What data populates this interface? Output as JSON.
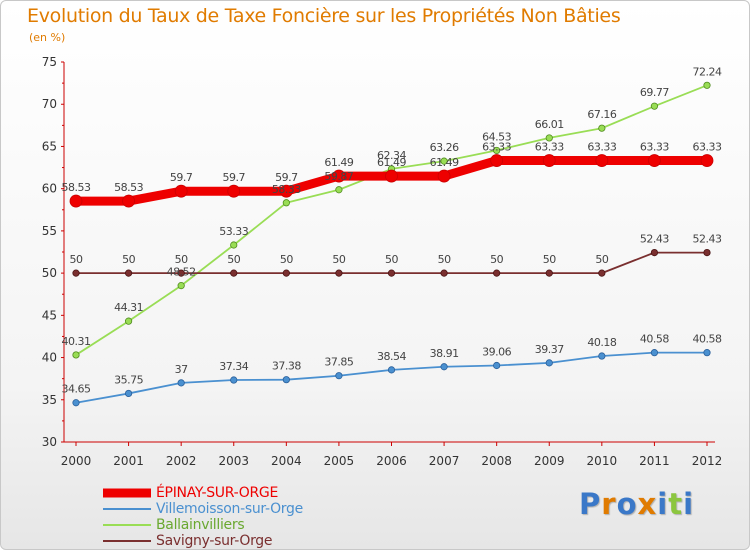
{
  "header": {
    "title": "Evolution du Taux de Taxe Foncière sur les Propriétés Non Bâties",
    "unit": "(en %)"
  },
  "colors": {
    "title": "#e07b00",
    "epinay": "#ee0000",
    "villemoisson": "#4a90d0",
    "ballainvilliers": "#99dd55",
    "savigny": "#7a2f2f",
    "axis_text": "#333333",
    "label_text": "#444444"
  },
  "chart_data": {
    "type": "line",
    "title": "Evolution du Taux de Taxe Foncière sur les Propriétés Non Bâties",
    "ylabel": "(en %)",
    "xlabel": "",
    "ylim": [
      30,
      75
    ],
    "yticks": [
      30,
      35,
      40,
      45,
      50,
      55,
      60,
      65,
      70,
      75
    ],
    "grid": false,
    "legend": "bottom-left",
    "x": [
      "2000",
      "2001",
      "2002",
      "2003",
      "2004",
      "2005",
      "2006",
      "2007",
      "2008",
      "2009",
      "2010",
      "2011",
      "2012"
    ],
    "series": [
      {
        "key": "ballainvilliers",
        "name": "Ballainvilliers",
        "color": "#99dd55",
        "values": [
          40.31,
          44.31,
          48.52,
          53.33,
          58.33,
          59.87,
          62.34,
          63.26,
          64.53,
          66.01,
          67.16,
          69.77,
          72.24
        ],
        "labels": [
          "40.31",
          "44.31",
          "48.52",
          "53.33",
          "58.33",
          "59.87",
          "62.34",
          "63.26",
          "64.53",
          "66.01",
          "67.16",
          "69.77",
          "72.24"
        ]
      },
      {
        "key": "villemoisson",
        "name": "Villemoisson-sur-Orge",
        "color": "#4a90d0",
        "values": [
          34.65,
          35.75,
          37,
          37.34,
          37.38,
          37.85,
          38.54,
          38.91,
          39.06,
          39.37,
          40.18,
          40.58,
          40.58
        ],
        "labels": [
          "34.65",
          "35.75",
          "37",
          "37.34",
          "37.38",
          "37.85",
          "38.54",
          "38.91",
          "39.06",
          "39.37",
          "40.18",
          "40.58",
          "40.58"
        ]
      },
      {
        "key": "savigny",
        "name": "Savigny-sur-Orge",
        "color": "#7a2f2f",
        "values": [
          50,
          50,
          50,
          50,
          50,
          50,
          50,
          50,
          50,
          50,
          50,
          52.43,
          52.43
        ],
        "labels": [
          "50",
          "50",
          "50",
          "50",
          "50",
          "50",
          "50",
          "50",
          "50",
          "50",
          "50",
          "52.43",
          "52.43"
        ]
      },
      {
        "key": "epinay",
        "name": "ÉPINAY-SUR-ORGE",
        "color": "#ee0000",
        "values": [
          58.53,
          58.53,
          59.7,
          59.7,
          59.7,
          61.49,
          61.49,
          61.49,
          63.33,
          63.33,
          63.33,
          63.33,
          63.33
        ],
        "labels": [
          "58.53",
          "58.53",
          "59.7",
          "59.7",
          "59.7",
          "61.49",
          "61.49",
          "61.49",
          "63.33",
          "63.33",
          "63.33",
          "63.33",
          "63.33"
        ]
      }
    ]
  },
  "legend": {
    "items": [
      {
        "key": "epinay",
        "label": "ÉPINAY-SUR-ORGE",
        "color": "#ee0000"
      },
      {
        "key": "villemoisson",
        "label": "Villemoisson-sur-Orge",
        "color": "#4a90d0"
      },
      {
        "key": "ballainvilliers",
        "label": "Ballainvilliers",
        "color": "#99dd55"
      },
      {
        "key": "savigny",
        "label": "Savigny-sur-Orge",
        "color": "#7a2f2f"
      }
    ]
  },
  "logo": {
    "text": "Proxiti",
    "letter_colors": [
      "#3a78c8",
      "#e07b00",
      "#3a78c8",
      "#e07b00",
      "#3a78c8",
      "#8cc63f",
      "#3a78c8"
    ]
  }
}
